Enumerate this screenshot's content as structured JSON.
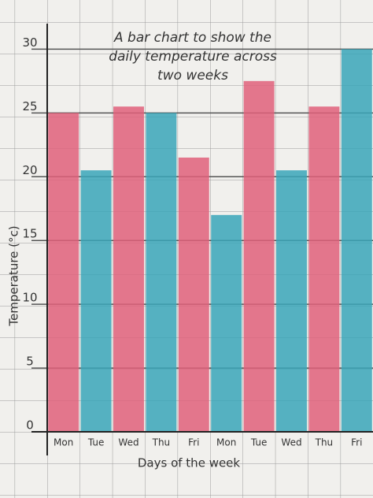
{
  "chart_data": {
    "type": "bar",
    "title": [
      "A bar chart to show the",
      "daily temperature across",
      "two weeks"
    ],
    "x_label": "Days of the week",
    "y_label": "Temperature (°c)",
    "categories": [
      "Mon",
      "Tue",
      "Wed",
      "Thu",
      "Fri",
      "Mon",
      "Tue",
      "Wed",
      "Thu",
      "Fri"
    ],
    "values": [
      25,
      20.5,
      25.5,
      25,
      21.5,
      17,
      27.5,
      20.5,
      25.5,
      30
    ],
    "colors": [
      "#e0607a",
      "#3aa6b8",
      "#e0607a",
      "#3aa6b8",
      "#e0607a",
      "#3aa6b8",
      "#e0607a",
      "#3aa6b8",
      "#e0607a",
      "#3aa6b8"
    ],
    "ylim": [
      0,
      32
    ],
    "yticks": [
      0,
      5,
      10,
      15,
      20,
      25,
      30
    ],
    "grid": true
  }
}
